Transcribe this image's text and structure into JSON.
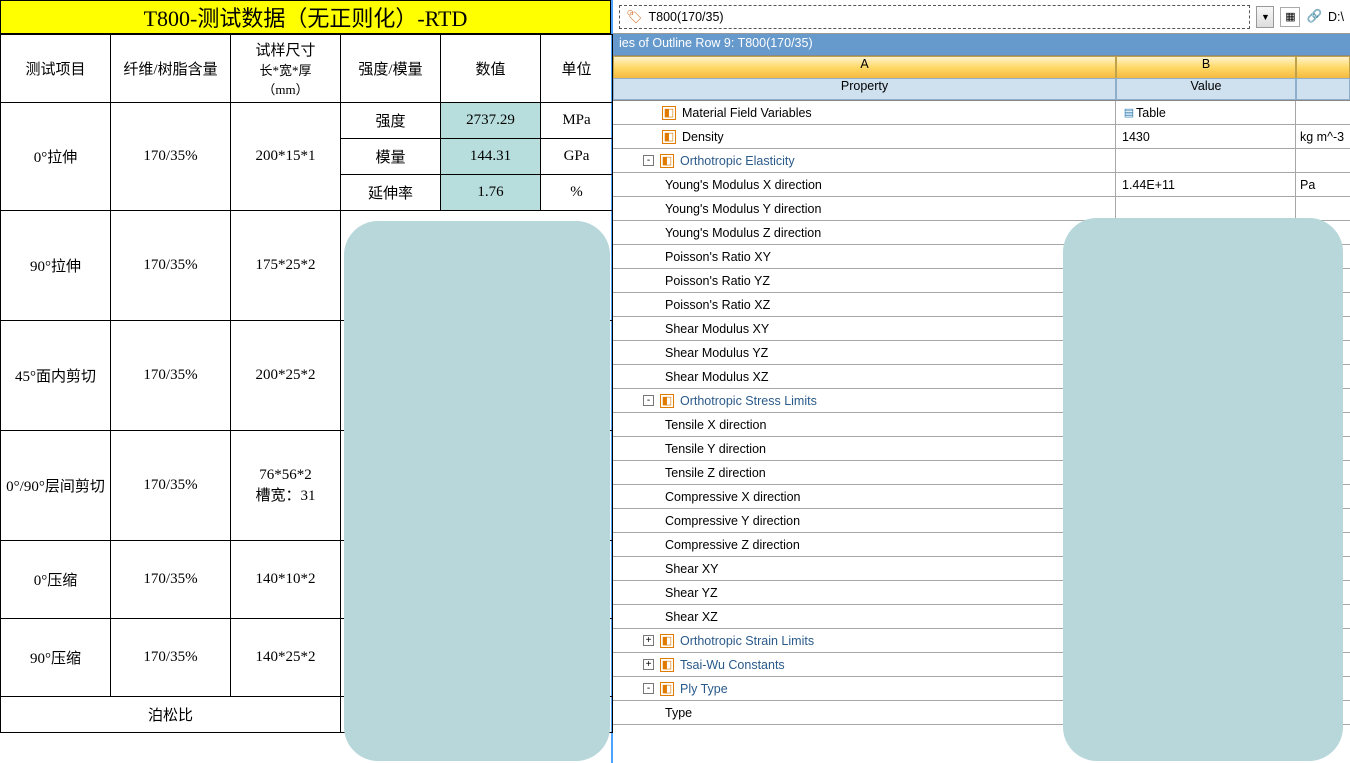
{
  "colors": {
    "title_bg": "#ffff00",
    "value_bg": "#b7dddd",
    "mask_bg": "#b7d7da",
    "section_bg": "#6699cc",
    "header_letter_bg": "#ffd966",
    "header_label_bg": "#cfe0ef"
  },
  "left": {
    "title": "T800-测试数据（无正则化）-RTD",
    "headers": {
      "c1": "测试项目",
      "c2": "纤维/树脂含量",
      "c3_line1": "试样尺寸",
      "c3_line2": "长*宽*厚",
      "c3_line3": "（mm）",
      "c4": "强度/模量",
      "c5": "数值",
      "c6": "单位"
    },
    "rows": {
      "r1": {
        "name": "0°拉伸",
        "ratio": "170/35%",
        "size": "200*15*1",
        "m1": "强度",
        "v1": "2737.29",
        "u1": "MPa",
        "m2": "模量",
        "v2": "144.31",
        "u2": "GPa",
        "m3": "延伸率",
        "v3": "1.76",
        "u3": "%"
      },
      "r2": {
        "name": "90°拉伸",
        "ratio": "170/35%",
        "size": "175*25*2"
      },
      "r3": {
        "name": "45°面内剪切",
        "ratio": "170/35%",
        "size": "200*25*2"
      },
      "r4": {
        "name": "0°/90°层间剪切",
        "ratio": "170/35%",
        "size_l1": "76*56*2",
        "size_l2": "槽宽：31"
      },
      "r5": {
        "name": "0°压缩",
        "ratio": "170/35%",
        "size": "140*10*2"
      },
      "r6": {
        "name": "90°压缩",
        "ratio": "170/35%",
        "size": "140*25*2"
      },
      "footer": "泊松比"
    }
  },
  "right": {
    "toolbar": {
      "material": "T800(170/35)",
      "path": "D:\\"
    },
    "section": "ies of Outline Row 9: T800(170/35)",
    "cols": {
      "A": "A",
      "B": "B",
      "labelA": "Property",
      "labelB": "Value"
    },
    "props": [
      {
        "indent": 1,
        "icon": "orange",
        "label": "Material Field Variables",
        "value": "Table",
        "valicon": true
      },
      {
        "indent": 1,
        "icon": "orange",
        "label": "Density",
        "value": "1430",
        "unit": "kg m^-3"
      },
      {
        "indent": 1,
        "expander": "-",
        "icon": "orange",
        "label": "Orthotropic Elasticity",
        "header": true
      },
      {
        "indent": 2,
        "label": "Young's Modulus X direction",
        "value": "1.44E+11",
        "unit": "Pa"
      },
      {
        "indent": 2,
        "label": "Young's Modulus Y direction"
      },
      {
        "indent": 2,
        "label": "Young's Modulus Z direction"
      },
      {
        "indent": 2,
        "label": "Poisson's Ratio XY"
      },
      {
        "indent": 2,
        "label": "Poisson's Ratio YZ"
      },
      {
        "indent": 2,
        "label": "Poisson's Ratio XZ"
      },
      {
        "indent": 2,
        "label": "Shear Modulus XY"
      },
      {
        "indent": 2,
        "label": "Shear Modulus YZ"
      },
      {
        "indent": 2,
        "label": "Shear Modulus XZ"
      },
      {
        "indent": 1,
        "expander": "-",
        "icon": "orange",
        "label": "Orthotropic Stress Limits",
        "header": true
      },
      {
        "indent": 2,
        "label": "Tensile X direction"
      },
      {
        "indent": 2,
        "label": "Tensile Y direction"
      },
      {
        "indent": 2,
        "label": "Tensile Z direction"
      },
      {
        "indent": 2,
        "label": "Compressive X direction"
      },
      {
        "indent": 2,
        "label": "Compressive Y direction"
      },
      {
        "indent": 2,
        "label": "Compressive Z direction"
      },
      {
        "indent": 2,
        "label": "Shear XY"
      },
      {
        "indent": 2,
        "label": "Shear YZ"
      },
      {
        "indent": 2,
        "label": "Shear XZ"
      },
      {
        "indent": 1,
        "expander": "+",
        "icon": "orange",
        "label": "Orthotropic Strain Limits",
        "header": true
      },
      {
        "indent": 1,
        "expander": "+",
        "icon": "orange",
        "label": "Tsai-Wu Constants",
        "header": true
      },
      {
        "indent": 1,
        "expander": "-",
        "icon": "orange",
        "label": "Ply Type",
        "header": true
      },
      {
        "indent": 2,
        "label": "Type"
      }
    ]
  }
}
